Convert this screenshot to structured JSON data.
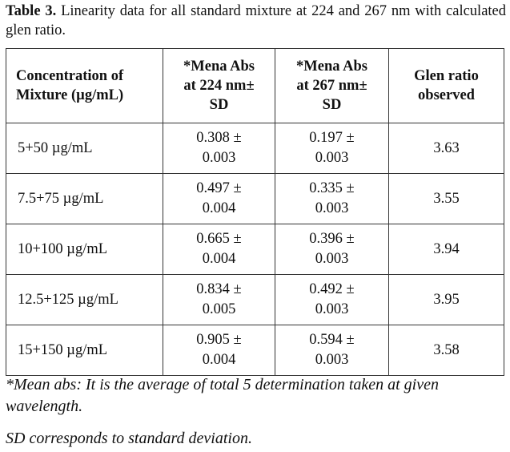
{
  "caption": {
    "label": "Table 3.",
    "text": " Linearity data for all standard mixture at 224 and 267 nm with calculated glen ratio."
  },
  "table": {
    "headers": {
      "concentration": [
        "Concentration of",
        "Mixture (µg/mL)"
      ],
      "abs224": [
        "*Mena Abs",
        "at 224 nm±",
        "SD"
      ],
      "abs267": [
        "*Mena Abs",
        "at 267 nm±",
        "SD"
      ],
      "ratio": [
        "Glen ratio",
        "observed"
      ]
    },
    "rows": [
      {
        "concentration": "5+50 µg/mL",
        "abs224": "0.308 ±",
        "sd224": "0.003",
        "abs267": "0.197 ±",
        "sd267": "0.003",
        "ratio": "3.63"
      },
      {
        "concentration": "7.5+75 µg/mL",
        "abs224": "0.497 ±",
        "sd224": "0.004",
        "abs267": "0.335 ±",
        "sd267": "0.003",
        "ratio": "3.55"
      },
      {
        "concentration": "10+100 µg/mL",
        "abs224": "0.665 ±",
        "sd224": "0.004",
        "abs267": "0.396 ±",
        "sd267": "0.003",
        "ratio": "3.94"
      },
      {
        "concentration": "12.5+125 µg/mL",
        "abs224": "0.834 ±",
        "sd224": "0.005",
        "abs267": "0.492 ±",
        "sd267": "0.003",
        "ratio": "3.95"
      },
      {
        "concentration": "15+150 µg/mL",
        "abs224": "0.905 ±",
        "sd224": "0.004",
        "abs267": "0.594 ±",
        "sd267": "0.003",
        "ratio": "3.58"
      }
    ]
  },
  "footnotes": {
    "mean_abs": "*Mean abs: It is the average of total 5 determination taken at given wavelength.",
    "sd": "SD corresponds to standard deviation."
  }
}
